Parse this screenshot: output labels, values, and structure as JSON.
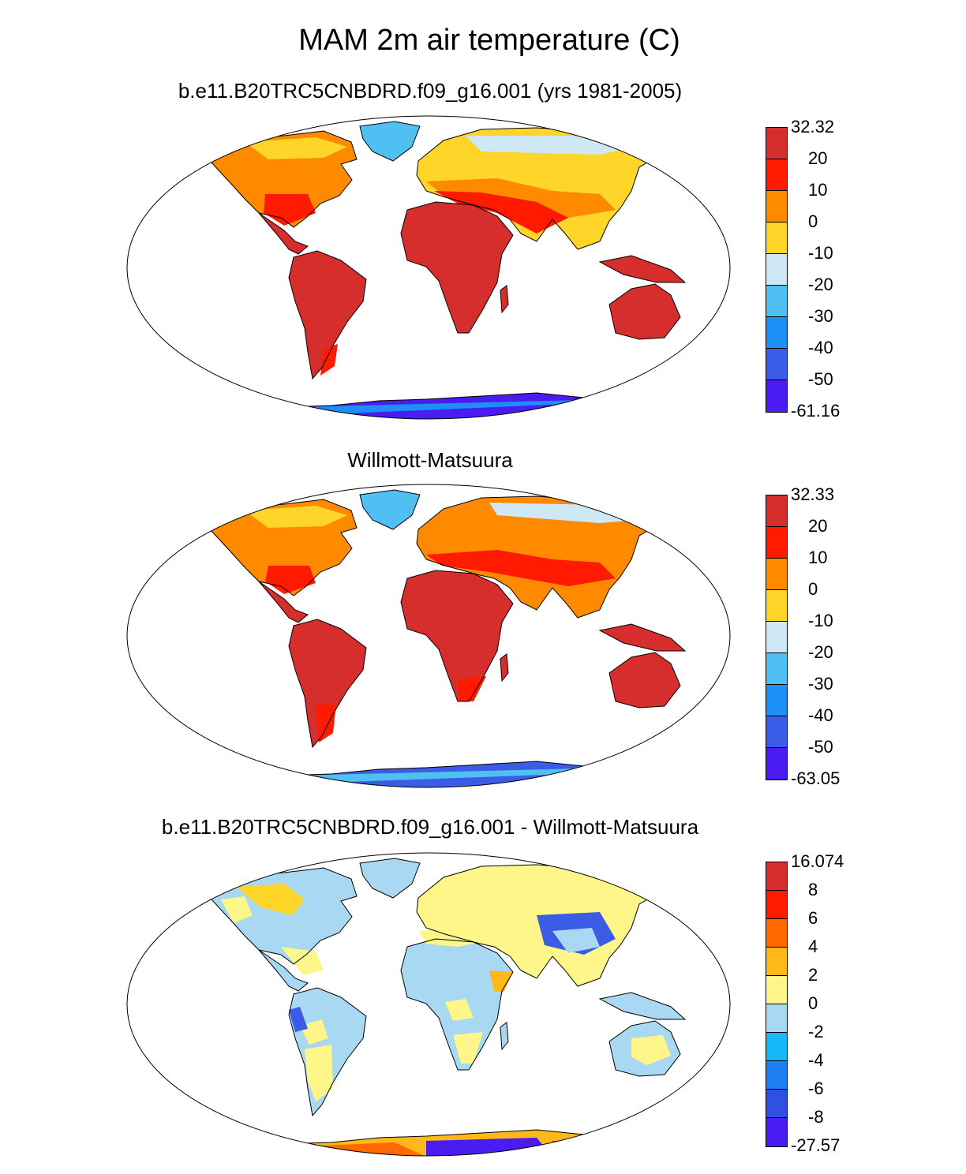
{
  "title": "MAM 2m air temperature (C)",
  "panels": [
    {
      "id": "model",
      "title": "b.e11.B20TRC5CNBDRD.f09_g16.001 (yrs 1981-2005)",
      "colorbar": {
        "labels": [
          "32.32",
          "20",
          "10",
          "0",
          "-10",
          "-20",
          "-30",
          "-40",
          "-50",
          "-61.16"
        ],
        "colors": [
          "#d62d2d",
          "#ff1a00",
          "#ff8a00",
          "#ffd52a",
          "#cfe8f5",
          "#50c0f3",
          "#1e8ff5",
          "#3b5ce6",
          "#4a1cf2"
        ]
      }
    },
    {
      "id": "obs",
      "title": "Willmott-Matsuura",
      "colorbar": {
        "labels": [
          "32.33",
          "20",
          "10",
          "0",
          "-10",
          "-20",
          "-30",
          "-40",
          "-50",
          "-63.05"
        ],
        "colors": [
          "#d62d2d",
          "#ff1a00",
          "#ff8a00",
          "#ffd52a",
          "#cfe8f5",
          "#50c0f3",
          "#1e8ff5",
          "#3b5ce6",
          "#4a1cf2"
        ]
      }
    },
    {
      "id": "diff",
      "title": "b.e11.B20TRC5CNBDRD.f09_g16.001 - Willmott-Matsuura",
      "colorbar": {
        "labels": [
          "16.074",
          "8",
          "6",
          "4",
          "2",
          "0",
          "-2",
          "-4",
          "-6",
          "-8",
          "-27.57"
        ],
        "colors": [
          "#d62d2d",
          "#ff1a00",
          "#ff6a00",
          "#ffb81a",
          "#fff68a",
          "#a9d8f2",
          "#16b8f7",
          "#1e7ff0",
          "#2f50e0",
          "#4a1cf2"
        ]
      }
    }
  ]
}
